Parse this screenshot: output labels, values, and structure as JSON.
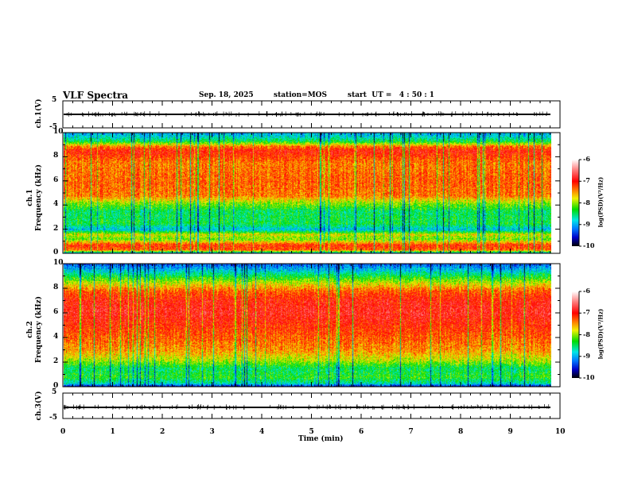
{
  "header": {
    "title": "VLF Spectra",
    "date": "Sep. 18, 2025",
    "station": "station=MOS",
    "start": "start  UT =   4 : 50 : 1"
  },
  "chart_data": [
    {
      "type": "line",
      "name": "ch1",
      "ylabel": "ch.1(V)",
      "ylim": [
        -5,
        5
      ],
      "yticks": [
        "5",
        "-5"
      ],
      "baseline": 0,
      "xlim": [
        0,
        10
      ]
    },
    {
      "type": "heatmap",
      "name": "ch1-spectrogram",
      "ylabel": "ch.1\nFrequency (kHz)",
      "ylabel_line1": "ch.1",
      "ylabel_line2": "Frequency (kHz)",
      "ylim": [
        0,
        10
      ],
      "yticks": [
        "0",
        "2",
        "4",
        "6",
        "8",
        "10"
      ],
      "xlim": [
        0,
        9.8
      ],
      "profile_freq_khz": [
        0,
        0.3,
        0.7,
        1.2,
        1.6,
        2.0,
        2.5,
        3.5,
        4.2,
        4.8,
        6,
        7.5,
        8.5,
        8.9,
        9.3,
        9.7,
        10
      ],
      "profile_logpsd": [
        -9.3,
        -7.3,
        -7.1,
        -8.1,
        -7.8,
        -8.9,
        -8.4,
        -8.5,
        -8.0,
        -7.4,
        -7.3,
        -7.4,
        -7.0,
        -7.4,
        -8.4,
        -8.8,
        -9.0
      ],
      "colorbar": {
        "label": "log(PSD)(V²/Hz)",
        "range": [
          -10,
          -6
        ],
        "ticks": [
          "-6",
          "-7",
          "-8",
          "-9",
          "-10"
        ]
      }
    },
    {
      "type": "heatmap",
      "name": "ch2-spectrogram",
      "ylabel_line1": "ch.2",
      "ylabel_line2": "Frequency (kHz)",
      "ylim": [
        0,
        10
      ],
      "yticks": [
        "0",
        "2",
        "4",
        "6",
        "8",
        "10"
      ],
      "xlim": [
        0,
        9.8
      ],
      "profile_freq_khz": [
        0,
        0.3,
        0.8,
        1.5,
        2.2,
        3,
        4,
        5,
        6,
        7,
        7.8,
        8.5,
        9.2,
        9.6,
        10
      ],
      "profile_logpsd": [
        -9.8,
        -8.7,
        -8.3,
        -8.5,
        -7.9,
        -7.5,
        -7.3,
        -7.1,
        -6.9,
        -7.0,
        -7.3,
        -7.9,
        -8.6,
        -9.0,
        -9.3
      ],
      "colorbar": {
        "label": "log(PSD)(V²/Hz)",
        "range": [
          -10,
          -6
        ],
        "ticks": [
          "-6",
          "-7",
          "-8",
          "-9",
          "-10"
        ]
      }
    },
    {
      "type": "line",
      "name": "ch3",
      "ylabel": "ch.3(V)",
      "ylim": [
        -5,
        5
      ],
      "yticks": [
        "5",
        "-5"
      ],
      "baseline": 0,
      "xlim": [
        0,
        10
      ]
    }
  ],
  "xaxis": {
    "label": "Time  (min)",
    "range": [
      0,
      10
    ],
    "ticks": [
      "0",
      "1",
      "2",
      "3",
      "4",
      "5",
      "6",
      "7",
      "8",
      "9",
      "10"
    ]
  }
}
